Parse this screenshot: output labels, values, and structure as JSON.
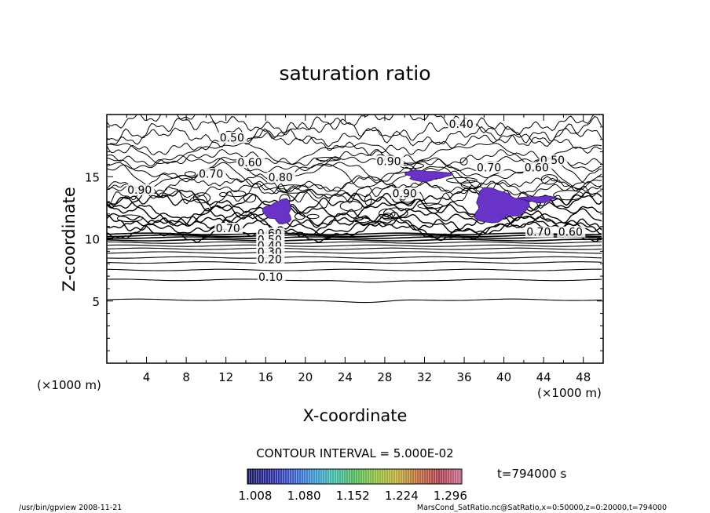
{
  "chart_data": {
    "type": "heatmap",
    "title": "saturation ratio",
    "xlabel": "X-coordinate",
    "ylabel": "Z-coordinate",
    "x_unit": "(×1000 m)",
    "y_unit": "(×1000 m)",
    "xlim": [
      0,
      50
    ],
    "ylim": [
      0,
      20
    ],
    "x_ticks": [
      "4",
      "8",
      "12",
      "16",
      "20",
      "24",
      "28",
      "32",
      "36",
      "40",
      "44",
      "48"
    ],
    "y_ticks": [
      "5",
      "10",
      "15"
    ],
    "contour_interval_text": "CONTOUR INTERVAL = 5.000E-02",
    "time_text": "t=794000 s",
    "colorbar_ticks": [
      "1.008",
      "1.080",
      "1.152",
      "1.224",
      "1.296"
    ],
    "colorbar_range": [
      1.008,
      1.296
    ],
    "contour_labels": [
      {
        "text": "0.40",
        "x": 35.7,
        "z": 19.0
      },
      {
        "text": "0.50",
        "x": 12.6,
        "z": 17.9
      },
      {
        "text": "0.50",
        "x": 44.9,
        "z": 16.1
      },
      {
        "text": "0.60",
        "x": 14.4,
        "z": 15.9
      },
      {
        "text": "0.60",
        "x": 43.3,
        "z": 15.5
      },
      {
        "text": "0.70",
        "x": 10.5,
        "z": 15.0
      },
      {
        "text": "0.70",
        "x": 38.5,
        "z": 15.5
      },
      {
        "text": "0.70",
        "x": 12.2,
        "z": 10.6
      },
      {
        "text": "0.70",
        "x": 43.5,
        "z": 10.3
      },
      {
        "text": "0.60",
        "x": 46.7,
        "z": 10.3
      },
      {
        "text": "0.80",
        "x": 17.5,
        "z": 14.7
      },
      {
        "text": "0.90",
        "x": 28.4,
        "z": 16.0
      },
      {
        "text": "0.90",
        "x": 30.0,
        "z": 13.4
      },
      {
        "text": "0.90",
        "x": 3.3,
        "z": 13.7
      },
      {
        "text": "0.60",
        "x": 16.4,
        "z": 10.2
      },
      {
        "text": "0.50",
        "x": 16.4,
        "z": 9.7
      },
      {
        "text": "0.40",
        "x": 16.4,
        "z": 9.2
      },
      {
        "text": "0.30",
        "x": 16.4,
        "z": 8.7
      },
      {
        "text": "0.20",
        "x": 16.4,
        "z": 8.1
      },
      {
        "text": "0.10",
        "x": 16.5,
        "z": 6.7
      }
    ],
    "saturated_regions": [
      {
        "x_range": [
          29.6,
          34.8
        ],
        "z_range": [
          14.6,
          15.6
        ],
        "approx_value": 1.08
      },
      {
        "x_range": [
          36.3,
          42.6
        ],
        "z_range": [
          11.1,
          14.2
        ],
        "approx_value": 1.1
      },
      {
        "x_range": [
          15.7,
          19.0
        ],
        "z_range": [
          11.1,
          13.3
        ],
        "approx_value": 1.09
      },
      {
        "x_range": [
          41.5,
          45.5
        ],
        "z_range": [
          12.9,
          13.5
        ],
        "approx_value": 1.05
      }
    ],
    "grid": false,
    "legend": "bottom-center colorbar"
  },
  "footer": {
    "left": "/usr/bin/gpview   2008-11-21",
    "right": "MarsCond_SatRatio.nc@SatRatio,x=0:50000,z=0:20000,t=794000"
  },
  "colors": {
    "colorbar": [
      "#1a1a5e",
      "#2b2b9c",
      "#3a55c8",
      "#3f8fcf",
      "#3fb7a8",
      "#4fb55a",
      "#8fba3f",
      "#b7a93a",
      "#b86a3a",
      "#a83a4a",
      "#c06f8a"
    ],
    "saturated_fill": "#6a33c8"
  }
}
